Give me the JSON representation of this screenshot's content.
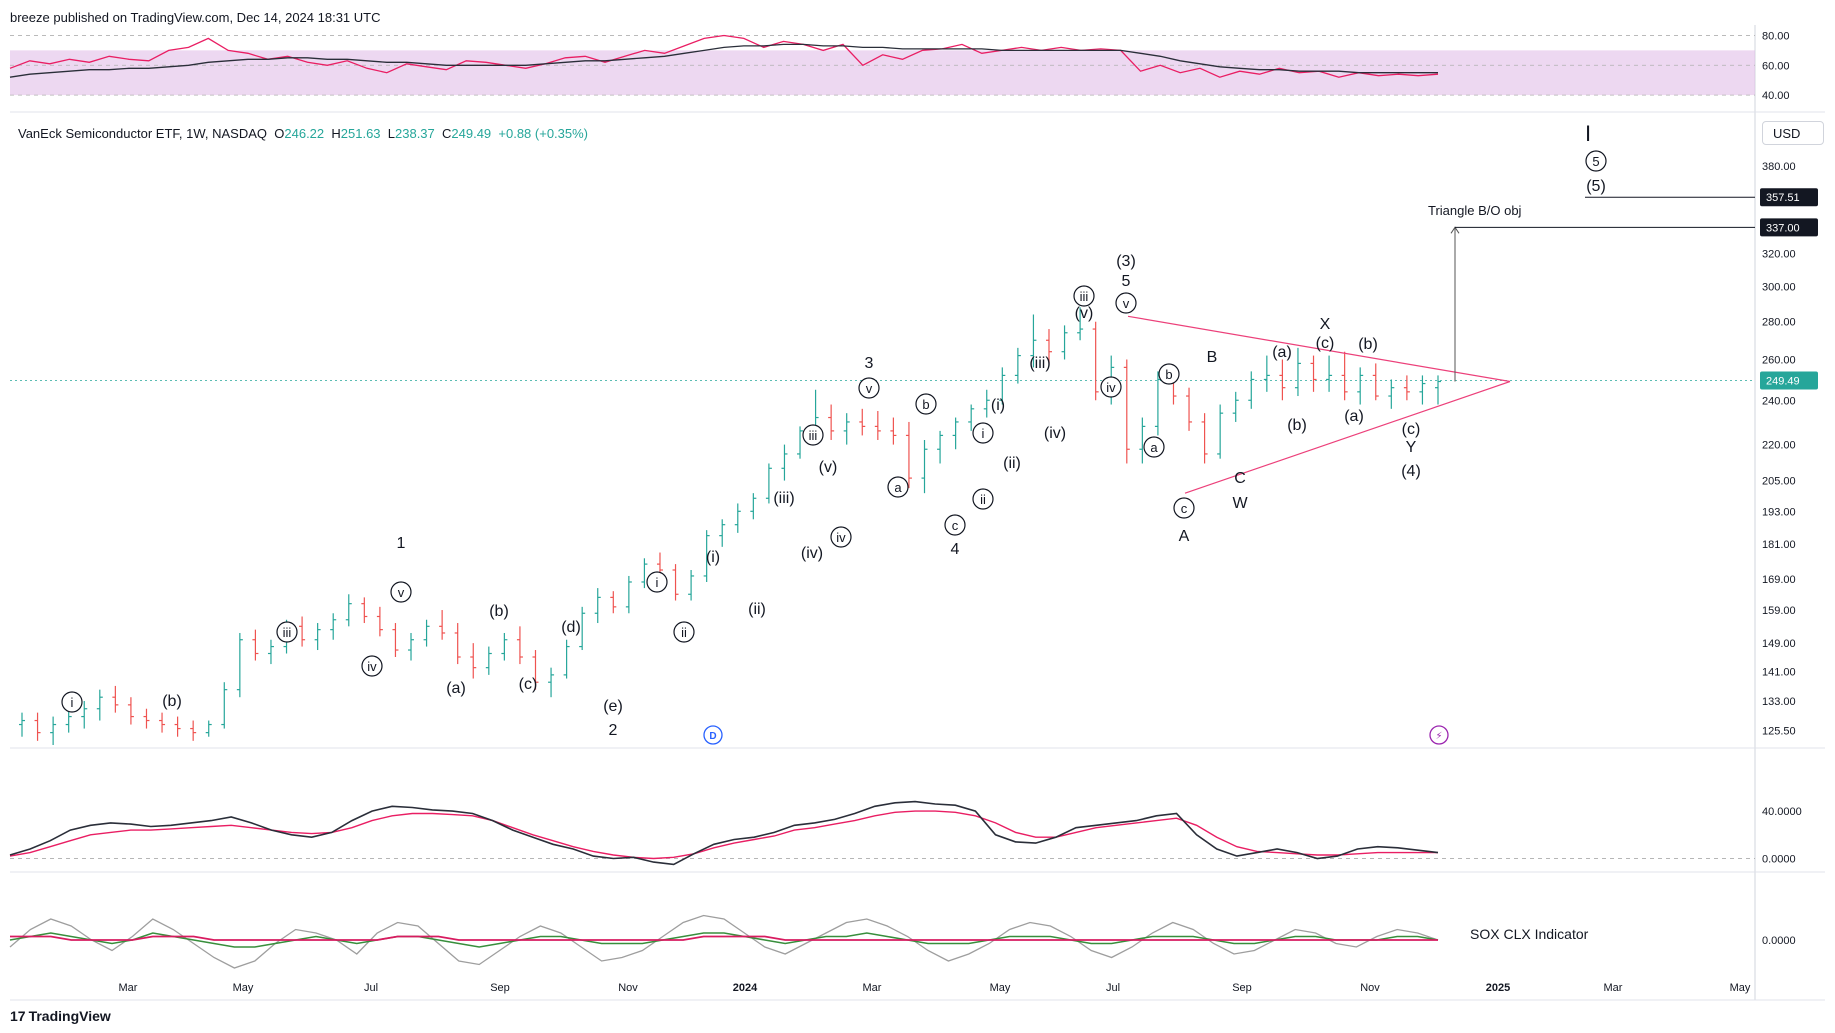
{
  "header": {
    "publisher": "breeze published on TradingView.com, Dec 14, 2024 18:31 UTC",
    "symbol": "VanEck Semiconductor ETF, 1W, NASDAQ",
    "open_label": "O",
    "open": "246.22",
    "high_label": "H",
    "high": "251.63",
    "low_label": "L",
    "low": "238.37",
    "close_label": "C",
    "close": "249.49",
    "change": "+0.88 (+0.35%)",
    "currency": "USD"
  },
  "footer": {
    "brand": "TradingView",
    "logo_mark": "17"
  },
  "indicators": {
    "sox_label": "SOX CLX Indicator"
  },
  "colors": {
    "up": "#26a69a",
    "down": "#ef5350",
    "rsi_line": "#e91e63",
    "rsi_band": "#e1bee7",
    "triangle": "#ec407a",
    "dark": "#2a2e39",
    "sox_green": "#388e3c",
    "sox_red": "#d81b60",
    "sox_gray": "#9e9e9e"
  },
  "chart_data": [
    {
      "type": "line",
      "name": "RSI panel",
      "y_ticks": [
        "80.00",
        "60.00",
        "40.00"
      ],
      "ylim": [
        30,
        85
      ],
      "band": [
        40,
        70
      ],
      "series": [
        {
          "values": [
            58,
            63,
            61,
            64,
            62,
            66,
            64,
            63,
            70,
            72,
            78,
            70,
            68,
            64,
            66,
            62,
            60,
            63,
            58,
            55,
            61,
            59,
            57,
            63,
            62,
            60,
            58,
            61,
            65,
            66,
            62,
            66,
            70,
            68,
            73,
            78,
            80,
            78,
            72,
            76,
            74,
            70,
            74,
            60,
            67,
            64,
            70,
            71,
            74,
            68,
            70,
            72,
            70,
            72,
            70,
            71,
            70,
            56,
            60,
            55,
            58,
            52,
            56,
            54,
            58,
            55,
            56,
            52,
            55,
            53,
            54,
            53,
            54
          ]
        },
        {
          "values": [
            52,
            54,
            55,
            56,
            57,
            57,
            58,
            58,
            59,
            60,
            62,
            63,
            64,
            64,
            65,
            65,
            64,
            64,
            63,
            62,
            62,
            61,
            60,
            60,
            60,
            60,
            60,
            61,
            62,
            63,
            63,
            64,
            65,
            66,
            68,
            70,
            72,
            73,
            73,
            74,
            74,
            73,
            73,
            72,
            72,
            71,
            71,
            71,
            71,
            71,
            70,
            70,
            70,
            70,
            70,
            70,
            70,
            68,
            66,
            63,
            61,
            59,
            58,
            57,
            57,
            56,
            56,
            56,
            55,
            55,
            55,
            55,
            55
          ]
        }
      ]
    },
    {
      "type": "ohlc",
      "name": "Price panel",
      "y_ticks": [
        "380.00",
        "357.51",
        "337.00",
        "320.00",
        "300.00",
        "280.00",
        "260.00",
        "249.49",
        "240.00",
        "220.00",
        "205.00",
        "193.00",
        "181.00",
        "169.00",
        "159.00",
        "149.00",
        "141.00",
        "133.00",
        "125.50"
      ],
      "y_scale": "log",
      "x_ticks": [
        "Mar",
        "May",
        "Jul",
        "Sep",
        "Nov",
        "2024",
        "Mar",
        "May",
        "Jul",
        "Sep",
        "Nov",
        "2025",
        "Mar",
        "May"
      ],
      "values": [
        [
          127,
          130,
          124,
          128
        ],
        [
          128,
          130,
          123,
          125
        ],
        [
          125,
          129,
          122,
          127
        ],
        [
          127,
          131,
          125,
          129
        ],
        [
          129,
          133,
          126,
          131
        ],
        [
          131,
          136,
          128,
          134
        ],
        [
          134,
          137,
          130,
          132
        ],
        [
          132,
          134,
          127,
          129
        ],
        [
          129,
          131,
          126,
          128
        ],
        [
          128,
          130,
          125,
          127
        ],
        [
          127,
          129,
          124,
          126
        ],
        [
          126,
          128,
          123,
          125
        ],
        [
          125,
          128,
          124,
          127
        ],
        [
          127,
          138,
          126,
          136
        ],
        [
          136,
          152,
          134,
          150
        ],
        [
          150,
          153,
          144,
          146
        ],
        [
          146,
          150,
          143,
          148
        ],
        [
          148,
          156,
          146,
          154
        ],
        [
          154,
          157,
          148,
          150
        ],
        [
          150,
          155,
          147,
          153
        ],
        [
          153,
          158,
          150,
          156
        ],
        [
          156,
          164,
          154,
          161
        ],
        [
          161,
          163,
          155,
          157
        ],
        [
          157,
          160,
          151,
          153
        ],
        [
          153,
          155,
          145,
          147
        ],
        [
          147,
          152,
          144,
          150
        ],
        [
          150,
          156,
          148,
          154
        ],
        [
          154,
          159,
          150,
          152
        ],
        [
          152,
          155,
          143,
          145
        ],
        [
          145,
          149,
          139,
          142
        ],
        [
          142,
          148,
          140,
          146
        ],
        [
          146,
          152,
          144,
          150
        ],
        [
          150,
          154,
          143,
          145
        ],
        [
          145,
          147,
          136,
          138
        ],
        [
          138,
          142,
          134,
          140
        ],
        [
          140,
          150,
          139,
          148
        ],
        [
          148,
          160,
          147,
          158
        ],
        [
          158,
          166,
          155,
          163
        ],
        [
          163,
          165,
          158,
          160
        ],
        [
          160,
          170,
          158,
          168
        ],
        [
          168,
          176,
          166,
          174
        ],
        [
          174,
          178,
          170,
          172
        ],
        [
          172,
          174,
          162,
          164
        ],
        [
          164,
          172,
          162,
          170
        ],
        [
          170,
          186,
          168,
          184
        ],
        [
          184,
          190,
          180,
          188
        ],
        [
          188,
          196,
          185,
          193
        ],
        [
          193,
          200,
          190,
          198
        ],
        [
          198,
          212,
          196,
          210
        ],
        [
          210,
          220,
          205,
          216
        ],
        [
          216,
          228,
          214,
          226
        ],
        [
          226,
          245,
          220,
          232
        ],
        [
          232,
          238,
          222,
          226
        ],
        [
          226,
          234,
          220,
          230
        ],
        [
          230,
          236,
          224,
          228
        ],
        [
          228,
          235,
          222,
          226
        ],
        [
          226,
          232,
          220,
          224
        ],
        [
          224,
          230,
          202,
          206
        ],
        [
          206,
          222,
          200,
          218
        ],
        [
          218,
          226,
          212,
          224
        ],
        [
          224,
          232,
          218,
          230
        ],
        [
          230,
          238,
          226,
          236
        ],
        [
          236,
          245,
          232,
          240
        ],
        [
          240,
          256,
          238,
          252
        ],
        [
          252,
          266,
          248,
          262
        ],
        [
          262,
          284,
          256,
          270
        ],
        [
          270,
          276,
          258,
          264
        ],
        [
          264,
          278,
          260,
          274
        ],
        [
          274,
          288,
          270,
          276
        ],
        [
          276,
          280,
          240,
          244
        ],
        [
          244,
          262,
          238,
          256
        ],
        [
          256,
          260,
          212,
          218
        ],
        [
          218,
          232,
          212,
          228
        ],
        [
          228,
          254,
          224,
          250
        ],
        [
          250,
          256,
          238,
          242
        ],
        [
          242,
          246,
          226,
          230
        ],
        [
          230,
          234,
          212,
          216
        ],
        [
          216,
          238,
          214,
          234
        ],
        [
          234,
          244,
          230,
          240
        ],
        [
          240,
          254,
          236,
          250
        ],
        [
          250,
          262,
          244,
          252
        ],
        [
          252,
          260,
          240,
          246
        ],
        [
          246,
          266,
          242,
          258
        ],
        [
          258,
          262,
          244,
          250
        ],
        [
          250,
          262,
          244,
          252
        ],
        [
          252,
          264,
          240,
          244
        ],
        [
          244,
          256,
          238,
          252
        ],
        [
          252,
          258,
          240,
          242
        ],
        [
          242,
          250,
          236,
          246
        ],
        [
          246,
          252,
          240,
          244
        ],
        [
          244,
          252,
          238,
          248
        ],
        [
          246,
          252,
          238,
          249
        ]
      ],
      "triangle_apex": "2025-01",
      "target": "337.00",
      "target_label": "Triangle B/O obj",
      "level_line": "357.51",
      "last_price": "249.49",
      "annotations": [
        "1",
        "2",
        "3",
        "4",
        "5",
        "(3)",
        "(4)",
        "(5)",
        "A",
        "B",
        "C",
        "W",
        "X",
        "Y",
        "I",
        "i",
        "iii",
        "iv",
        "v",
        "ii",
        "a",
        "b",
        "c",
        "(a)",
        "(b)",
        "(c)",
        "(d)",
        "(e)",
        "(i)",
        "(ii)",
        "(iii)",
        "(iv)",
        "(v)"
      ]
    },
    {
      "type": "line",
      "name": "Oscillator panel",
      "y_ticks": [
        "40.0000",
        "0.0000"
      ],
      "ylim": [
        -8,
        62
      ],
      "series": [
        {
          "values": [
            3,
            8,
            15,
            24,
            28,
            30,
            29,
            27,
            28,
            30,
            32,
            35,
            30,
            24,
            20,
            18,
            22,
            32,
            40,
            44,
            43,
            41,
            40,
            38,
            32,
            24,
            18,
            12,
            8,
            2,
            0,
            1,
            -3,
            -5,
            4,
            12,
            16,
            18,
            22,
            28,
            30,
            33,
            38,
            44,
            47,
            48,
            46,
            45,
            40,
            20,
            14,
            13,
            18,
            26,
            28,
            30,
            32,
            36,
            38,
            20,
            8,
            2,
            5,
            8,
            5,
            0,
            2,
            8,
            10,
            9,
            7,
            5
          ]
        },
        {
          "values": [
            2,
            5,
            10,
            15,
            20,
            22,
            24,
            24,
            25,
            26,
            27,
            28,
            26,
            24,
            22,
            21,
            22,
            26,
            32,
            36,
            38,
            38,
            37,
            36,
            32,
            26,
            20,
            15,
            10,
            6,
            3,
            1,
            0,
            1,
            4,
            9,
            13,
            16,
            19,
            24,
            26,
            29,
            32,
            36,
            39,
            40,
            40,
            39,
            36,
            30,
            22,
            18,
            18,
            22,
            26,
            28,
            30,
            32,
            34,
            28,
            18,
            10,
            6,
            5,
            4,
            3,
            3,
            4,
            5,
            5,
            5,
            5
          ]
        }
      ]
    },
    {
      "type": "line",
      "name": "SOX CLX Indicator",
      "y_ticks": [
        "0.0000"
      ],
      "ylim": [
        -10,
        10
      ],
      "series": [
        {
          "values": [
            -2,
            3,
            6,
            4,
            0,
            -3,
            1,
            6,
            3,
            -1,
            -5,
            -8,
            -6,
            -1,
            3,
            2,
            0,
            -4,
            2,
            5,
            4,
            -1,
            -6,
            -7,
            -3,
            1,
            4,
            2,
            -2,
            -6,
            -5,
            -3,
            1,
            5,
            7,
            6,
            2,
            -2,
            -4,
            -1,
            2,
            5,
            6,
            4,
            1,
            -3,
            -6,
            -4,
            -1,
            3,
            5,
            4,
            1,
            -3,
            -5,
            -2,
            2,
            5,
            3,
            -1,
            -4,
            -3,
            0,
            3,
            2,
            -1,
            -2,
            1,
            3,
            2,
            0
          ]
        },
        {
          "values": [
            0,
            1,
            2,
            1,
            0,
            -1,
            0,
            2,
            1,
            0,
            -1,
            -2,
            -2,
            -1,
            0,
            1,
            0,
            -1,
            0,
            1,
            1,
            0,
            -1,
            -2,
            -1,
            0,
            1,
            1,
            0,
            -1,
            -1,
            -1,
            0,
            1,
            2,
            2,
            1,
            0,
            -1,
            0,
            1,
            1,
            2,
            1,
            0,
            -1,
            -1,
            -1,
            0,
            1,
            1,
            1,
            0,
            -1,
            -1,
            0,
            1,
            1,
            1,
            0,
            -1,
            -1,
            0,
            1,
            1,
            0,
            0,
            0,
            1,
            1,
            0
          ]
        },
        {
          "values": [
            1,
            1,
            1,
            0,
            0,
            0,
            0,
            1,
            1,
            1,
            0,
            0,
            0,
            0,
            0,
            0,
            0,
            0,
            0,
            1,
            1,
            1,
            0,
            0,
            0,
            0,
            0,
            0,
            0,
            0,
            0,
            0,
            0,
            0,
            1,
            1,
            1,
            1,
            0,
            0,
            0,
            0,
            0,
            0,
            0,
            0,
            0,
            0,
            0,
            0,
            0,
            0,
            0,
            0,
            0,
            0,
            0,
            0,
            0,
            0,
            0,
            0,
            0,
            0,
            0,
            0,
            0,
            0,
            0,
            0,
            0
          ]
        }
      ]
    }
  ]
}
